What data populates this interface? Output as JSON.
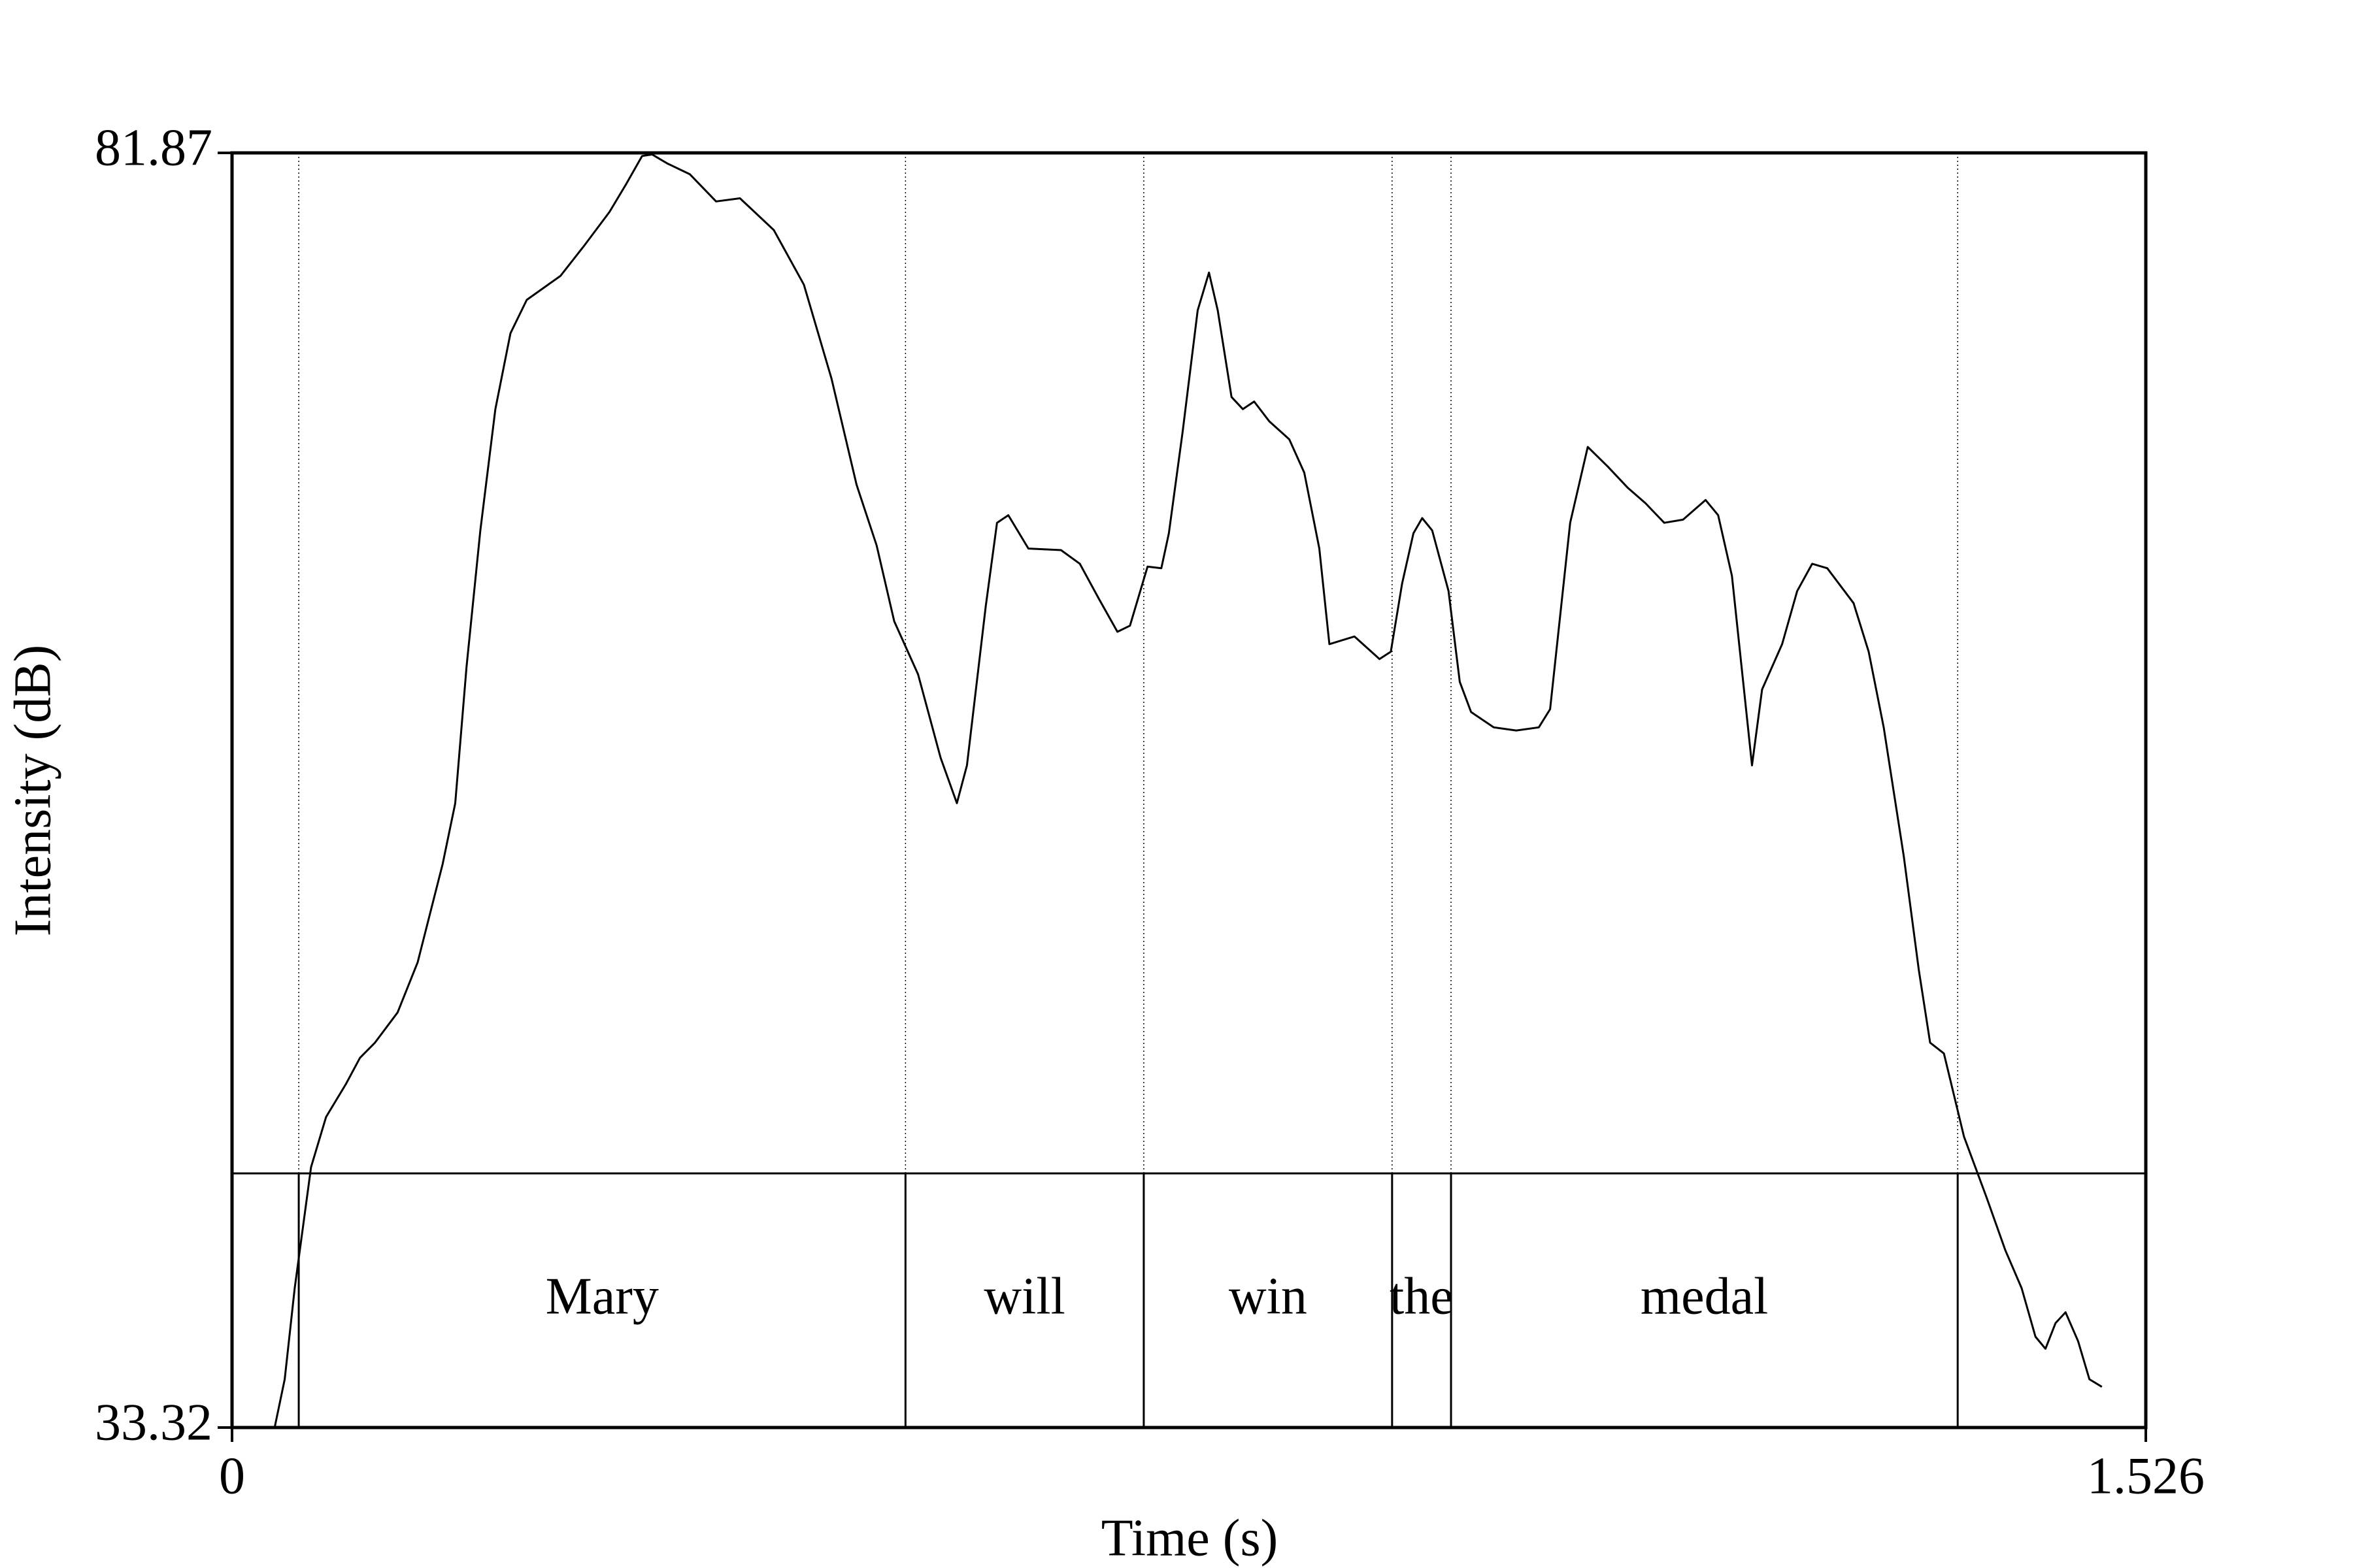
{
  "chart_data": {
    "type": "line",
    "x_label": "Time (s)",
    "y_label": "Intensity (dB)",
    "xlim": [
      0,
      1.526
    ],
    "ylim": [
      33.32,
      81.87
    ],
    "xticks": [
      0,
      1.526
    ],
    "yticks": [
      33.32,
      81.87
    ],
    "color": "#000000",
    "x": [
      0.034,
      0.042,
      0.05,
      0.063,
      0.075,
      0.091,
      0.102,
      0.114,
      0.132,
      0.148,
      0.168,
      0.178,
      0.187,
      0.198,
      0.21,
      0.222,
      0.235,
      0.262,
      0.281,
      0.301,
      0.314,
      0.327,
      0.335,
      0.347,
      0.365,
      0.386,
      0.405,
      0.432,
      0.456,
      0.478,
      0.498,
      0.514,
      0.528,
      0.547,
      0.565,
      0.578,
      0.586,
      0.601,
      0.61,
      0.619,
      0.635,
      0.661,
      0.676,
      0.691,
      0.706,
      0.716,
      0.73,
      0.741,
      0.747,
      0.758,
      0.77,
      0.779,
      0.786,
      0.797,
      0.806,
      0.815,
      0.827,
      0.843,
      0.855,
      0.867,
      0.875,
      0.895,
      0.915,
      0.924,
      0.933,
      0.942,
      0.949,
      0.957,
      0.97,
      0.979,
      0.988,
      1.006,
      1.024,
      1.042,
      1.051,
      1.067,
      1.081,
      1.097,
      1.113,
      1.127,
      1.142,
      1.157,
      1.175,
      1.185,
      1.196,
      1.212,
      1.22,
      1.236,
      1.248,
      1.26,
      1.272,
      1.293,
      1.305,
      1.317,
      1.333,
      1.345,
      1.354,
      1.365,
      1.381,
      1.399,
      1.414,
      1.427,
      1.438,
      1.446,
      1.454,
      1.462,
      1.472,
      1.481,
      1.491
    ],
    "values": [
      33.32,
      35.16,
      38.63,
      43.24,
      45.15,
      46.42,
      47.4,
      47.98,
      49.13,
      51.04,
      54.79,
      57.1,
      62.3,
      67.49,
      72.11,
      75.0,
      76.27,
      77.19,
      78.35,
      79.62,
      80.66,
      81.75,
      81.81,
      81.47,
      81.06,
      80.02,
      80.14,
      78.93,
      76.85,
      73.27,
      69.23,
      66.92,
      64.03,
      62.01,
      58.83,
      57.1,
      58.54,
      64.61,
      67.78,
      68.07,
      66.8,
      66.74,
      66.22,
      64.9,
      63.63,
      63.86,
      66.11,
      66.05,
      67.38,
      71.25,
      75.87,
      77.31,
      75.87,
      72.57,
      72.11,
      72.4,
      71.65,
      70.96,
      69.69,
      66.8,
      63.16,
      63.45,
      62.59,
      62.87,
      65.47,
      67.38,
      67.96,
      67.49,
      65.18,
      61.72,
      60.57,
      59.99,
      59.87,
      59.99,
      60.68,
      67.78,
      70.67,
      69.92,
      69.11,
      68.53,
      67.78,
      67.9,
      68.65,
      68.07,
      65.76,
      58.54,
      61.43,
      63.16,
      65.18,
      66.22,
      66.05,
      64.72,
      62.87,
      59.99,
      55.08,
      50.75,
      47.98,
      47.57,
      44.4,
      42.09,
      40.07,
      38.63,
      36.78,
      36.32,
      37.3,
      37.71,
      36.61,
      35.16,
      34.87
    ],
    "tier": {
      "boundaries": [
        0.0532,
        0.537,
        0.727,
        0.925,
        0.972,
        1.376
      ],
      "labels": [
        "Mary",
        "will",
        "win",
        "the",
        "medal"
      ]
    }
  }
}
